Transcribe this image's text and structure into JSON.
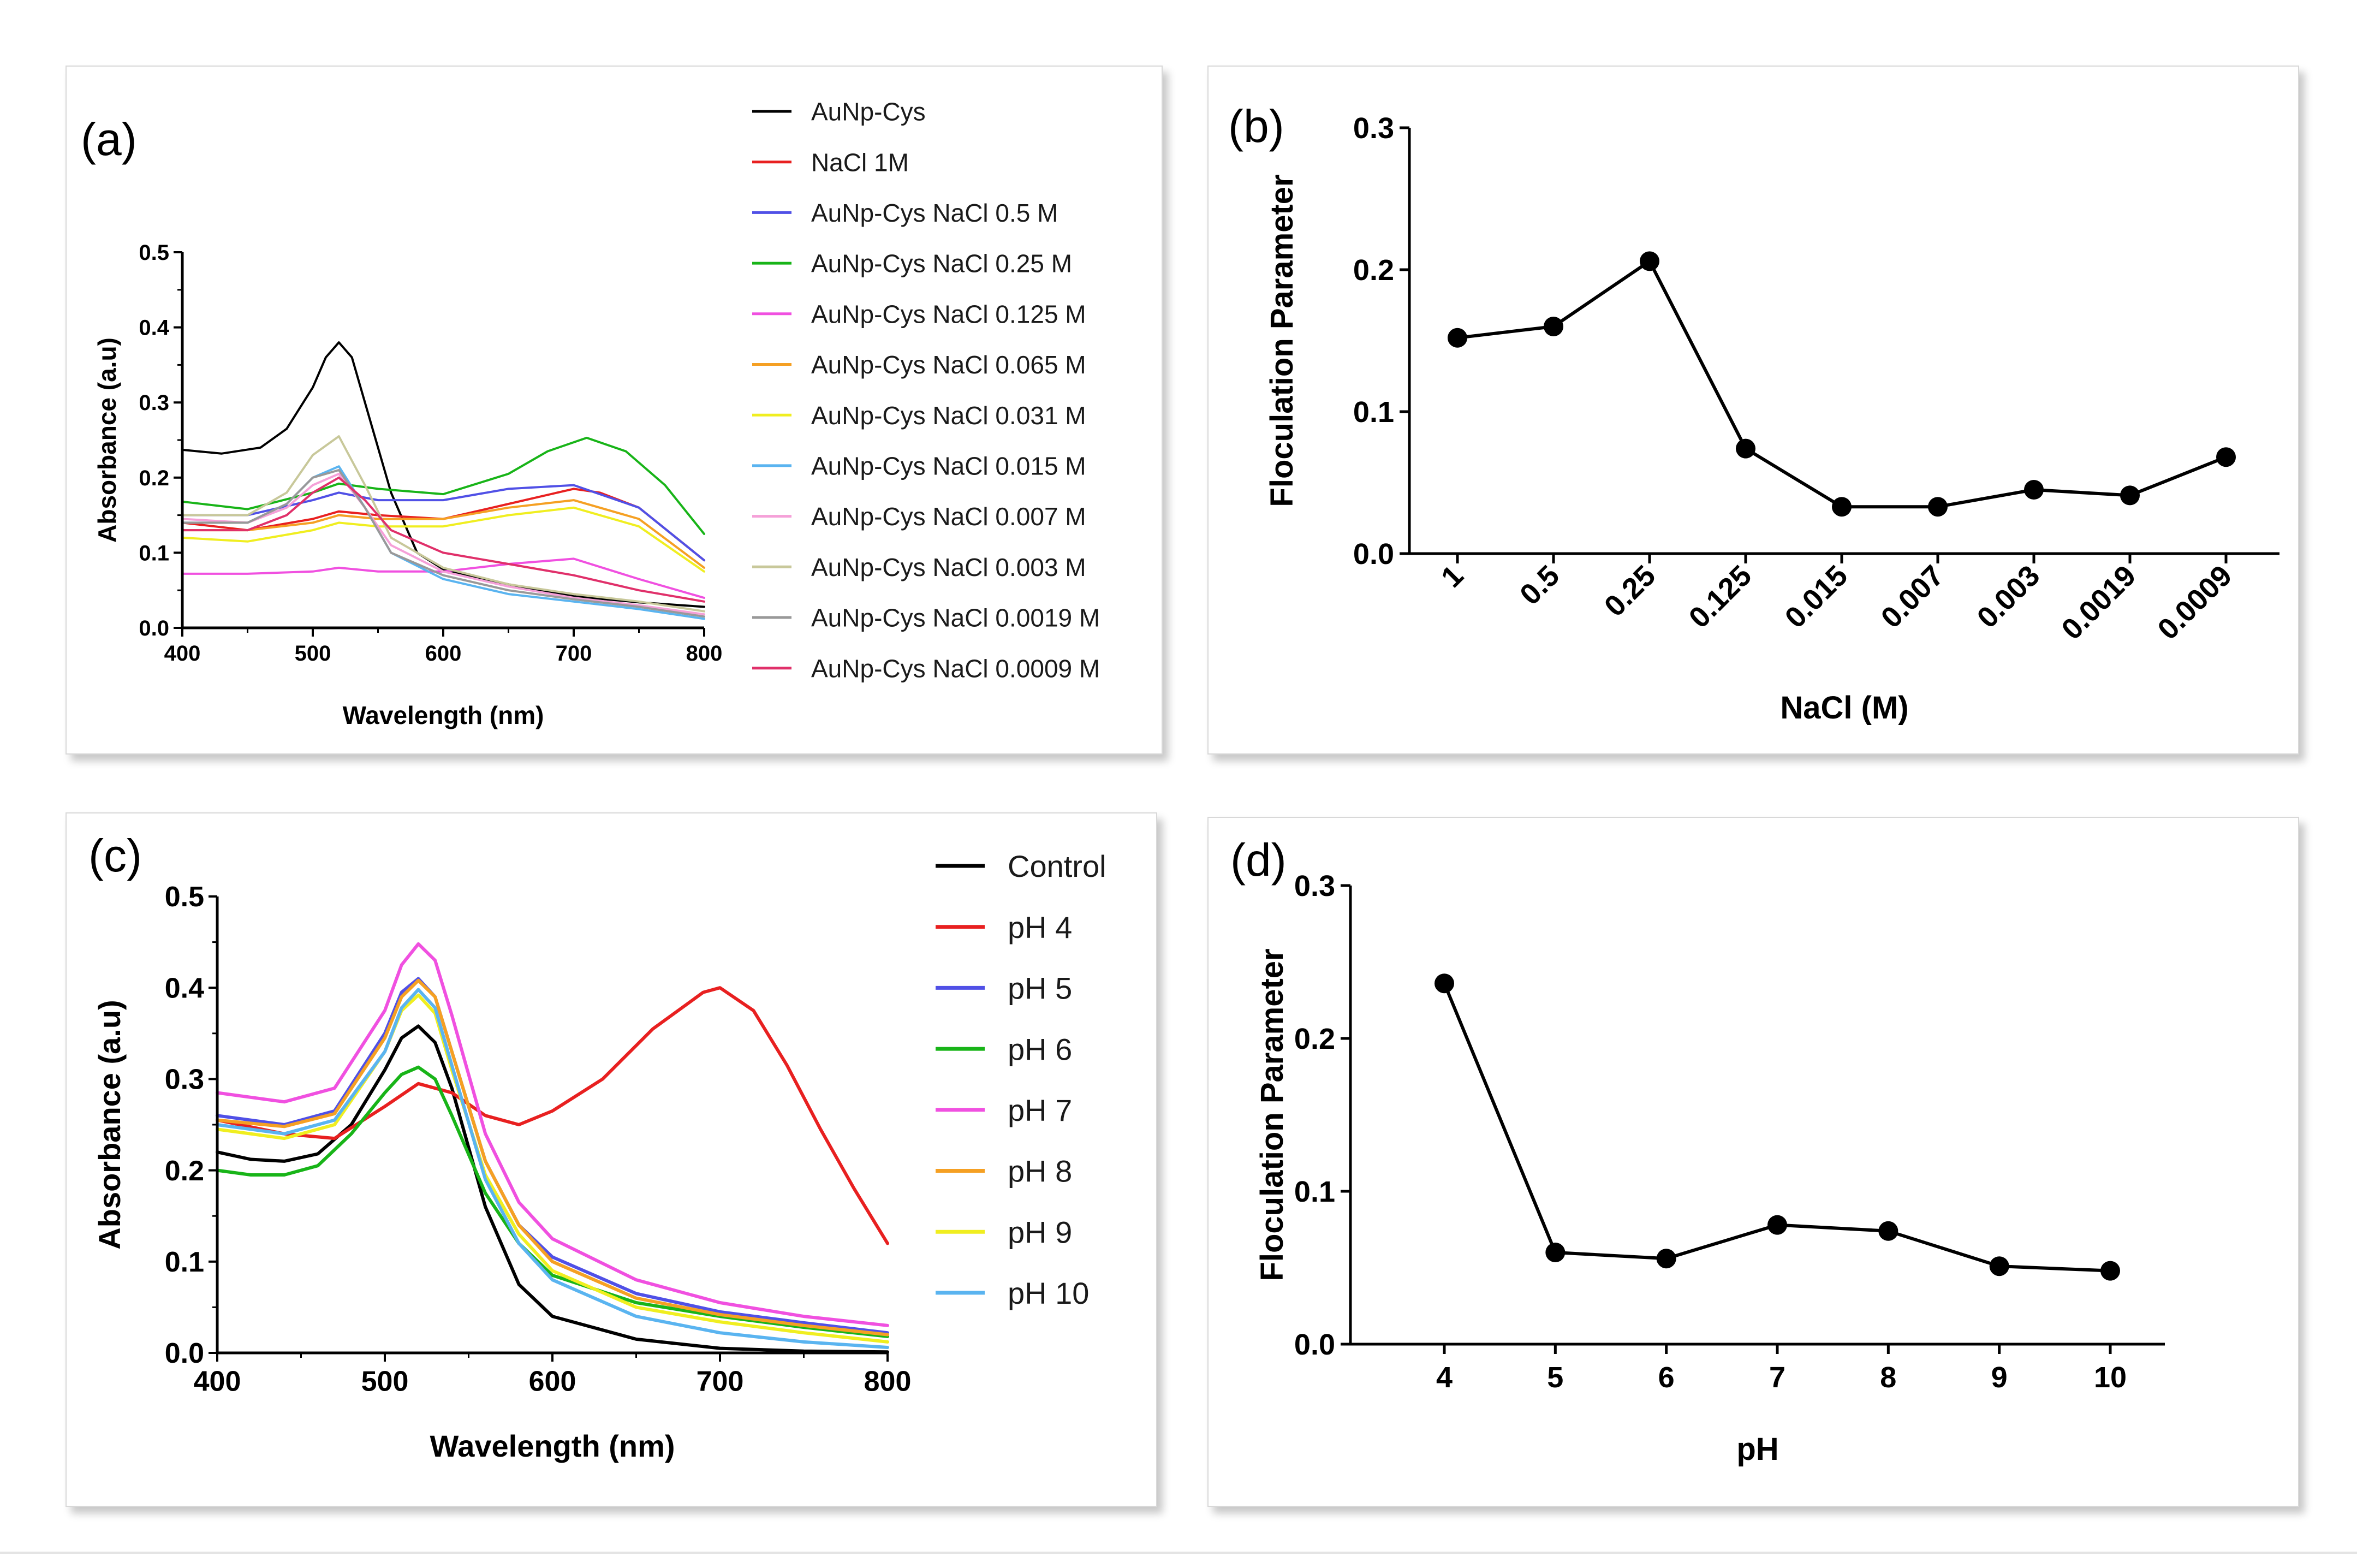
{
  "chart_data": [
    {
      "id": "a",
      "type": "line",
      "panel_label": "(a)",
      "xlabel": "Wavelength (nm)",
      "ylabel": "Absorbance (a.u)",
      "xlim": [
        400,
        800
      ],
      "ylim": [
        0,
        0.5
      ],
      "xticks": [
        "400",
        "500",
        "600",
        "700",
        "800"
      ],
      "yticks": [
        "0.0",
        "0.1",
        "0.2",
        "0.3",
        "0.4",
        "0.5"
      ],
      "legend_position": "right",
      "series": [
        {
          "name": "AuNp-Cys",
          "color": "#000000",
          "x": [
            400,
            430,
            460,
            480,
            500,
            510,
            520,
            530,
            540,
            560,
            580,
            600,
            650,
            700,
            750,
            800
          ],
          "y": [
            0.237,
            0.232,
            0.24,
            0.265,
            0.32,
            0.36,
            0.38,
            0.36,
            0.3,
            0.18,
            0.1,
            0.078,
            0.058,
            0.042,
            0.034,
            0.028
          ]
        },
        {
          "name": "NaCl 1M",
          "color": "#e82020",
          "x": [
            400,
            450,
            500,
            520,
            550,
            600,
            650,
            700,
            720,
            750,
            800
          ],
          "y": [
            0.14,
            0.13,
            0.145,
            0.155,
            0.15,
            0.145,
            0.165,
            0.185,
            0.18,
            0.16,
            0.09
          ]
        },
        {
          "name": "AuNp-Cys NaCl 0.5 M",
          "color": "#5050e6",
          "x": [
            400,
            450,
            500,
            520,
            550,
            600,
            650,
            700,
            750,
            800
          ],
          "y": [
            0.15,
            0.15,
            0.17,
            0.18,
            0.17,
            0.17,
            0.185,
            0.19,
            0.16,
            0.09
          ]
        },
        {
          "name": "AuNp-Cys NaCl 0.25 M",
          "color": "#18b418",
          "x": [
            400,
            450,
            500,
            520,
            550,
            600,
            650,
            680,
            710,
            740,
            770,
            800
          ],
          "y": [
            0.168,
            0.158,
            0.18,
            0.192,
            0.185,
            0.178,
            0.205,
            0.235,
            0.253,
            0.235,
            0.19,
            0.125
          ]
        },
        {
          "name": "AuNp-Cys NaCl 0.125 M",
          "color": "#f050e0",
          "x": [
            400,
            450,
            500,
            520,
            550,
            600,
            650,
            700,
            750,
            800
          ],
          "y": [
            0.072,
            0.072,
            0.075,
            0.08,
            0.075,
            0.075,
            0.085,
            0.092,
            0.065,
            0.04
          ]
        },
        {
          "name": "AuNp-Cys NaCl 0.065 M",
          "color": "#f5a023",
          "x": [
            400,
            450,
            500,
            520,
            550,
            600,
            650,
            700,
            750,
            800
          ],
          "y": [
            0.13,
            0.13,
            0.14,
            0.15,
            0.145,
            0.145,
            0.16,
            0.17,
            0.145,
            0.08
          ]
        },
        {
          "name": "AuNp-Cys NaCl 0.031 M",
          "color": "#f0ee20",
          "x": [
            400,
            450,
            500,
            520,
            550,
            600,
            650,
            700,
            750,
            800
          ],
          "y": [
            0.12,
            0.115,
            0.13,
            0.14,
            0.135,
            0.135,
            0.15,
            0.16,
            0.135,
            0.075
          ]
        },
        {
          "name": "AuNp-Cys NaCl 0.015 M",
          "color": "#5ab4f0",
          "x": [
            400,
            450,
            480,
            500,
            520,
            540,
            560,
            600,
            650,
            700,
            750,
            800
          ],
          "y": [
            0.14,
            0.14,
            0.165,
            0.2,
            0.215,
            0.16,
            0.1,
            0.065,
            0.045,
            0.035,
            0.025,
            0.012
          ]
        },
        {
          "name": "AuNp-Cys NaCl 0.007 M",
          "color": "#f5a0d8",
          "x": [
            400,
            450,
            480,
            500,
            520,
            540,
            560,
            600,
            650,
            700,
            750,
            800
          ],
          "y": [
            0.145,
            0.14,
            0.16,
            0.19,
            0.205,
            0.16,
            0.11,
            0.075,
            0.055,
            0.04,
            0.03,
            0.018
          ]
        },
        {
          "name": "AuNp-Cys NaCl 0.003 M",
          "color": "#c8c89a",
          "x": [
            400,
            450,
            480,
            500,
            520,
            540,
            560,
            600,
            650,
            700,
            750,
            800
          ],
          "y": [
            0.15,
            0.15,
            0.18,
            0.23,
            0.255,
            0.19,
            0.12,
            0.08,
            0.058,
            0.045,
            0.035,
            0.022
          ]
        },
        {
          "name": "AuNp-Cys NaCl 0.0019 M",
          "color": "#999999",
          "x": [
            400,
            450,
            480,
            500,
            520,
            540,
            560,
            600,
            650,
            700,
            750,
            800
          ],
          "y": [
            0.14,
            0.14,
            0.165,
            0.2,
            0.21,
            0.16,
            0.1,
            0.07,
            0.05,
            0.038,
            0.028,
            0.015
          ]
        },
        {
          "name": "AuNp-Cys NaCl 0.0009 M",
          "color": "#e0306a",
          "x": [
            400,
            450,
            480,
            500,
            520,
            540,
            560,
            600,
            650,
            700,
            750,
            800
          ],
          "y": [
            0.13,
            0.13,
            0.15,
            0.18,
            0.2,
            0.17,
            0.13,
            0.1,
            0.085,
            0.07,
            0.05,
            0.035
          ]
        }
      ]
    },
    {
      "id": "b",
      "type": "line",
      "panel_label": "(b)",
      "xlabel": "NaCl (M)",
      "ylabel": "Floculation Parameter",
      "ylim": [
        0,
        0.3
      ],
      "yticks": [
        "0.0",
        "0.1",
        "0.2",
        "0.3"
      ],
      "categories": [
        "1",
        "0.5",
        "0.25",
        "0.125",
        "0.015",
        "0.007",
        "0.003",
        "0.0019",
        "0.0009"
      ],
      "series": [
        {
          "name": "Floculation Parameter",
          "color": "#000000",
          "values": [
            0.152,
            0.16,
            0.206,
            0.074,
            0.033,
            0.033,
            0.045,
            0.041,
            0.068
          ]
        }
      ]
    },
    {
      "id": "c",
      "type": "line",
      "panel_label": "(c)",
      "xlabel": "Wavelength (nm)",
      "ylabel": "Absorbance (a.u)",
      "xlim": [
        400,
        800
      ],
      "ylim": [
        0,
        0.5
      ],
      "xticks": [
        "400",
        "500",
        "600",
        "700",
        "800"
      ],
      "yticks": [
        "0.0",
        "0.1",
        "0.2",
        "0.3",
        "0.4",
        "0.5"
      ],
      "legend_position": "right",
      "series": [
        {
          "name": "Control",
          "color": "#000000",
          "x": [
            400,
            420,
            440,
            460,
            480,
            500,
            510,
            520,
            530,
            540,
            560,
            580,
            600,
            650,
            700,
            750,
            800
          ],
          "y": [
            0.22,
            0.212,
            0.21,
            0.218,
            0.25,
            0.31,
            0.345,
            0.358,
            0.34,
            0.29,
            0.16,
            0.075,
            0.04,
            0.015,
            0.005,
            0.002,
            0.001
          ]
        },
        {
          "name": "pH 4",
          "color": "#e82020",
          "x": [
            400,
            440,
            470,
            500,
            520,
            540,
            560,
            580,
            600,
            630,
            660,
            690,
            700,
            720,
            740,
            760,
            780,
            800
          ],
          "y": [
            0.255,
            0.24,
            0.235,
            0.27,
            0.295,
            0.285,
            0.26,
            0.25,
            0.265,
            0.3,
            0.355,
            0.395,
            0.4,
            0.375,
            0.315,
            0.245,
            0.18,
            0.12
          ]
        },
        {
          "name": "pH 5",
          "color": "#5050e6",
          "x": [
            400,
            440,
            470,
            500,
            510,
            520,
            530,
            540,
            560,
            580,
            600,
            650,
            700,
            750,
            800
          ],
          "y": [
            0.26,
            0.25,
            0.265,
            0.35,
            0.395,
            0.41,
            0.39,
            0.33,
            0.21,
            0.14,
            0.105,
            0.065,
            0.045,
            0.033,
            0.022
          ]
        },
        {
          "name": "pH 6",
          "color": "#18b418",
          "x": [
            400,
            420,
            440,
            460,
            480,
            500,
            510,
            520,
            530,
            540,
            560,
            580,
            600,
            650,
            700,
            750,
            800
          ],
          "y": [
            0.2,
            0.195,
            0.195,
            0.205,
            0.24,
            0.285,
            0.305,
            0.313,
            0.3,
            0.26,
            0.175,
            0.12,
            0.085,
            0.055,
            0.04,
            0.028,
            0.018
          ]
        },
        {
          "name": "pH 7",
          "color": "#f050e0",
          "x": [
            400,
            440,
            470,
            500,
            510,
            520,
            530,
            540,
            560,
            580,
            600,
            650,
            700,
            750,
            800
          ],
          "y": [
            0.285,
            0.275,
            0.29,
            0.375,
            0.425,
            0.448,
            0.43,
            0.37,
            0.24,
            0.165,
            0.125,
            0.08,
            0.055,
            0.04,
            0.03
          ]
        },
        {
          "name": "pH 8",
          "color": "#f5a023",
          "x": [
            400,
            440,
            470,
            500,
            510,
            520,
            530,
            540,
            560,
            580,
            600,
            650,
            700,
            750,
            800
          ],
          "y": [
            0.255,
            0.248,
            0.262,
            0.345,
            0.39,
            0.408,
            0.39,
            0.33,
            0.21,
            0.14,
            0.1,
            0.06,
            0.042,
            0.03,
            0.02
          ]
        },
        {
          "name": "pH 9",
          "color": "#f0ee20",
          "x": [
            400,
            440,
            470,
            500,
            510,
            520,
            530,
            540,
            560,
            580,
            600,
            650,
            700,
            750,
            800
          ],
          "y": [
            0.245,
            0.235,
            0.25,
            0.33,
            0.375,
            0.392,
            0.372,
            0.31,
            0.195,
            0.13,
            0.09,
            0.05,
            0.034,
            0.022,
            0.012
          ]
        },
        {
          "name": "pH 10",
          "color": "#5ab4f0",
          "x": [
            400,
            440,
            470,
            500,
            510,
            520,
            530,
            540,
            560,
            580,
            600,
            650,
            700,
            750,
            800
          ],
          "y": [
            0.25,
            0.24,
            0.255,
            0.33,
            0.378,
            0.398,
            0.378,
            0.315,
            0.19,
            0.12,
            0.08,
            0.04,
            0.022,
            0.012,
            0.006
          ]
        }
      ]
    },
    {
      "id": "d",
      "type": "line",
      "panel_label": "(d)",
      "xlabel": "pH",
      "ylabel": "Floculation Parameter",
      "ylim": [
        0,
        0.3
      ],
      "yticks": [
        "0.0",
        "0.1",
        "0.2",
        "0.3"
      ],
      "categories": [
        "4",
        "5",
        "6",
        "7",
        "8",
        "9",
        "10"
      ],
      "series": [
        {
          "name": "Floculation Parameter",
          "color": "#000000",
          "values": [
            0.236,
            0.06,
            0.056,
            0.078,
            0.074,
            0.051,
            0.048
          ]
        }
      ]
    }
  ]
}
